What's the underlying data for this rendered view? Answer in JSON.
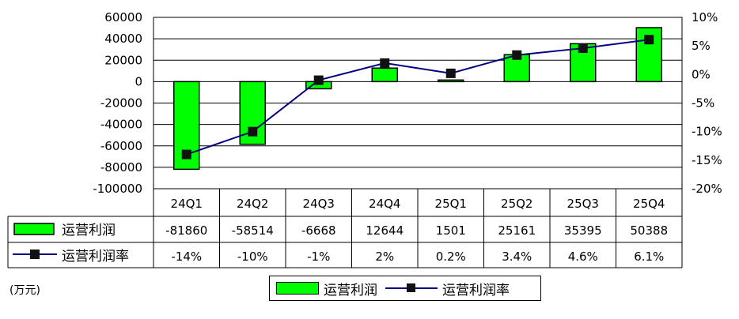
{
  "chart_data": {
    "type": "bar",
    "categories": [
      "24Q1",
      "24Q2",
      "24Q3",
      "24Q4",
      "25Q1",
      "25Q2",
      "25Q3",
      "25Q4"
    ],
    "series": [
      {
        "name": "运营利润",
        "kind": "bar",
        "axis": "left",
        "color": "#00ff00",
        "values": [
          -81860,
          -58514,
          -6668,
          12644,
          1501,
          25161,
          35395,
          50388
        ]
      },
      {
        "name": "运营利润率",
        "kind": "line",
        "axis": "right",
        "color": "#000080",
        "values": [
          -14,
          -10,
          -1,
          2,
          0.2,
          3.4,
          4.6,
          6.1
        ]
      }
    ],
    "left_axis": {
      "min": -100000,
      "max": 60000,
      "step": 20000,
      "ticks": [
        "60000",
        "40000",
        "20000",
        "0",
        "-20000",
        "-40000",
        "-60000",
        "-80000",
        "-100000"
      ]
    },
    "right_axis": {
      "min": -20,
      "max": 10,
      "step": 5,
      "ticks": [
        "10%",
        "5%",
        "0%",
        "-5%",
        "-10%",
        "-15%",
        "-20%"
      ]
    },
    "table": {
      "rows": [
        {
          "label": "运营利润",
          "cells": [
            "-81860",
            "-58514",
            "-6668",
            "12644",
            "1501",
            "25161",
            "35395",
            "50388"
          ]
        },
        {
          "label": "运营利润率",
          "cells": [
            "-14%",
            "-10%",
            "-1%",
            "2%",
            "0.2%",
            "3.4%",
            "4.6%",
            "6.1%"
          ]
        }
      ]
    },
    "unit_label": "(万元)",
    "legend": {
      "position": "bottom",
      "items": [
        "运营利润",
        "运营利润率"
      ]
    },
    "grid": true
  }
}
